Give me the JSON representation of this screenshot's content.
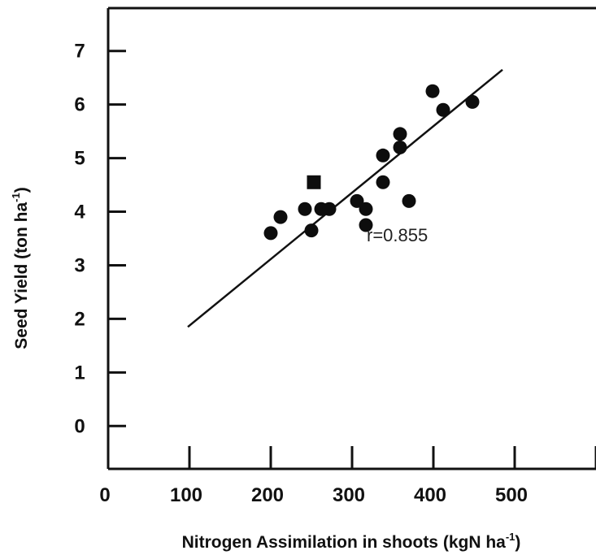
{
  "chart_data": {
    "type": "scatter",
    "title": "",
    "xlabel": {
      "text": "Nitrogen Assimilation in shoots (kgN ha",
      "sup": "-1",
      "tail": ")"
    },
    "ylabel": {
      "text": "Seed Yield (ton ha",
      "sup": "-1",
      "tail": ")"
    },
    "xlim": [
      0,
      600
    ],
    "ylim": [
      -0.8,
      7.8
    ],
    "x_ticks": [
      0,
      100,
      200,
      300,
      400,
      500
    ],
    "x_tick_labels": [
      "0",
      "100",
      "200",
      "300",
      "400",
      "500"
    ],
    "y_ticks": [
      0,
      1,
      2,
      3,
      4,
      5,
      6,
      7
    ],
    "y_tick_labels": [
      "0",
      "1",
      "2",
      "3",
      "4",
      "5",
      "6",
      "7"
    ],
    "grid": false,
    "legend": "none",
    "series": [
      {
        "marker": "circle",
        "points": [
          [
            200,
            3.6
          ],
          [
            212,
            3.9
          ],
          [
            242,
            4.05
          ],
          [
            250,
            3.65
          ],
          [
            262,
            4.05
          ],
          [
            272,
            4.05
          ],
          [
            306,
            4.2
          ],
          [
            317,
            3.75
          ],
          [
            317,
            4.05
          ],
          [
            338,
            4.55
          ],
          [
            338,
            5.05
          ],
          [
            359,
            5.2
          ],
          [
            359,
            5.45
          ],
          [
            370,
            4.2
          ],
          [
            399,
            6.25
          ],
          [
            412,
            5.9
          ],
          [
            448,
            6.05
          ]
        ]
      },
      {
        "marker": "square",
        "points": [
          [
            253,
            4.55
          ]
        ]
      }
    ],
    "fit_line": {
      "x": [
        98,
        485
      ],
      "y": [
        1.85,
        6.65
      ]
    },
    "annotation": {
      "text": "r=0.855",
      "x": 318,
      "y": 3.45
    }
  }
}
